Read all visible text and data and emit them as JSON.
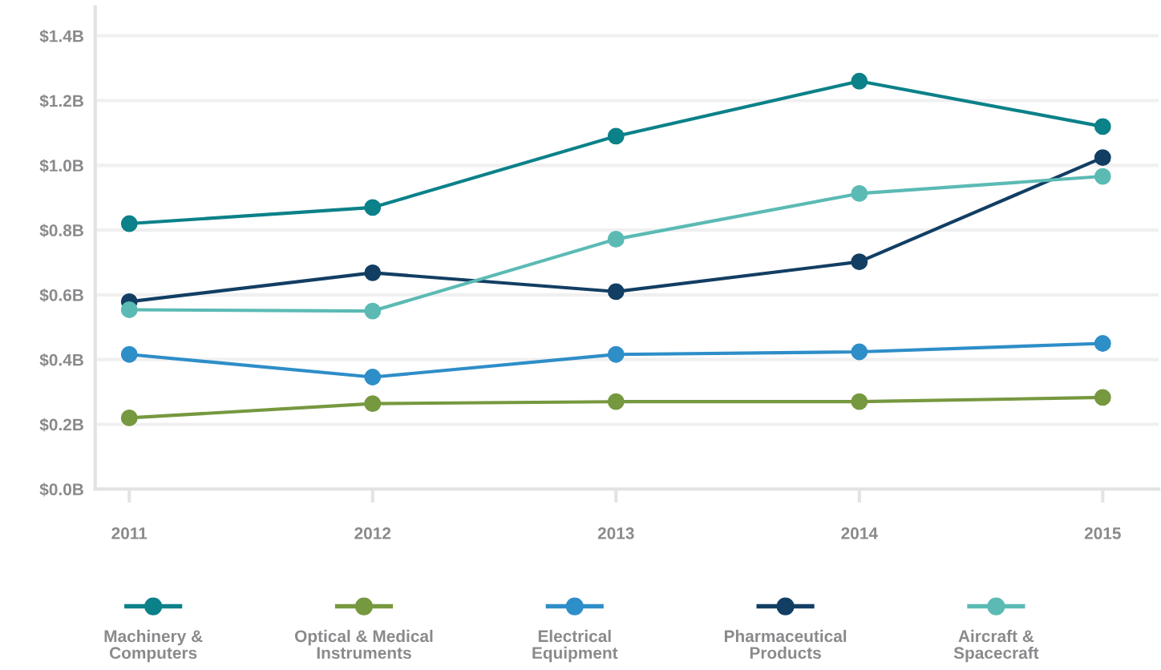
{
  "chart_data": {
    "type": "line",
    "categories": [
      "2011",
      "2012",
      "2013",
      "2014",
      "2015"
    ],
    "series": [
      {
        "name": "Machinery & Computers",
        "color": "#0b8189",
        "values": [
          0.82,
          0.87,
          1.09,
          1.26,
          1.12
        ]
      },
      {
        "name": "Optical & Medical Instruments",
        "color": "#76983f",
        "values": [
          0.22,
          0.264,
          0.27,
          0.27,
          0.283
        ]
      },
      {
        "name": "Electrical Equipment",
        "color": "#2e8ec8",
        "values": [
          0.416,
          0.346,
          0.416,
          0.424,
          0.45
        ]
      },
      {
        "name": "Pharmaceutical Products",
        "color": "#123e63",
        "values": [
          0.579,
          0.668,
          0.61,
          0.702,
          1.024
        ]
      },
      {
        "name": "Aircraft & Spacecraft",
        "color": "#5bbab4",
        "values": [
          0.554,
          0.55,
          0.772,
          0.913,
          0.966
        ]
      }
    ],
    "ylim": [
      0,
      1.49
    ],
    "yticks": [
      {
        "value": 0,
        "label": "$0.0B"
      },
      {
        "value": 0.2,
        "label": "$0.2B"
      },
      {
        "value": 0.4,
        "label": "$0.4B"
      },
      {
        "value": 0.6,
        "label": "$0.6B"
      },
      {
        "value": 0.8,
        "label": "$0.8B"
      },
      {
        "value": 1.0,
        "label": "$1.0B"
      },
      {
        "value": 1.2,
        "label": "$1.2B"
      },
      {
        "value": 1.4,
        "label": "$1.4B"
      }
    ],
    "grid": "y",
    "legend": "bottom",
    "marker": "circle",
    "line_style": "solid"
  }
}
